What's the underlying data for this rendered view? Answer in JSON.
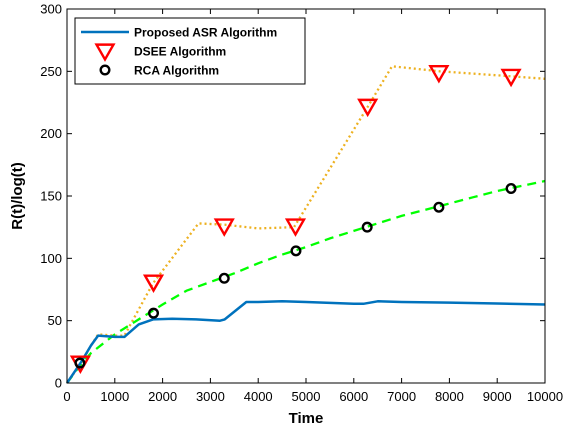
{
  "chart_data": {
    "type": "line",
    "xlabel": "Time",
    "ylabel": "R(t)/log(t)",
    "xlim": [
      0,
      10000
    ],
    "ylim": [
      0,
      300
    ],
    "xticks": [
      0,
      1000,
      2000,
      3000,
      4000,
      5000,
      6000,
      7000,
      8000,
      9000,
      10000
    ],
    "yticks": [
      0,
      50,
      100,
      150,
      200,
      250,
      300
    ],
    "grid": false,
    "legend_position": "top-left",
    "series": [
      {
        "name": "Proposed ASR Algorithm",
        "color": "#0072BD",
        "line_style": "solid",
        "marker": "none",
        "x": [
          0,
          300,
          500,
          650,
          1000,
          1200,
          1500,
          1800,
          2200,
          2700,
          3200,
          3300,
          3750,
          4000,
          4500,
          5000,
          6000,
          6200,
          6500,
          7000,
          8000,
          9000,
          10000
        ],
        "y": [
          0,
          17,
          30,
          38,
          37,
          37,
          47,
          51,
          51.5,
          51,
          50,
          51,
          65,
          65,
          65.5,
          65,
          63.5,
          63.5,
          65.5,
          65,
          64.5,
          63.8,
          63
        ]
      },
      {
        "name": "DSEE Algorithm",
        "color": "#EDB120",
        "marker_color": "#FF0000",
        "line_style": "dotted",
        "marker": "triangle-down",
        "x": [
          0,
          300,
          500,
          650,
          1000,
          1200,
          1800,
          2750,
          3300,
          4000,
          4750,
          6300,
          6800,
          7800,
          9300,
          10000
        ],
        "y": [
          0,
          16,
          30,
          39,
          38,
          38,
          80,
          128,
          127,
          124,
          125,
          222,
          254,
          250,
          246,
          244
        ],
        "marker_x": [
          280,
          1810,
          3290,
          4780,
          6290,
          7780,
          9290
        ],
        "marker_y": [
          16,
          81,
          126,
          126,
          222,
          249,
          246
        ]
      },
      {
        "name": "RCA Algorithm",
        "color": "#00FF00",
        "marker_color": "#000000",
        "line_style": "dashed",
        "marker": "circle",
        "x": [
          0,
          250,
          500,
          1000,
          1500,
          2000,
          2500,
          3000,
          3500,
          4000,
          4500,
          5000,
          5500,
          6000,
          6500,
          7000,
          7500,
          8000,
          8500,
          9000,
          9500,
          10000
        ],
        "y": [
          0,
          13,
          24,
          39,
          51,
          63,
          74,
          81,
          88,
          96,
          103,
          109,
          116,
          122,
          128,
          134,
          139,
          144,
          149,
          154,
          158,
          162
        ],
        "marker_x": [
          270,
          1810,
          3290,
          4790,
          6280,
          7780,
          9290
        ],
        "marker_y": [
          16,
          56,
          84,
          106,
          125,
          141,
          156
        ]
      }
    ]
  }
}
